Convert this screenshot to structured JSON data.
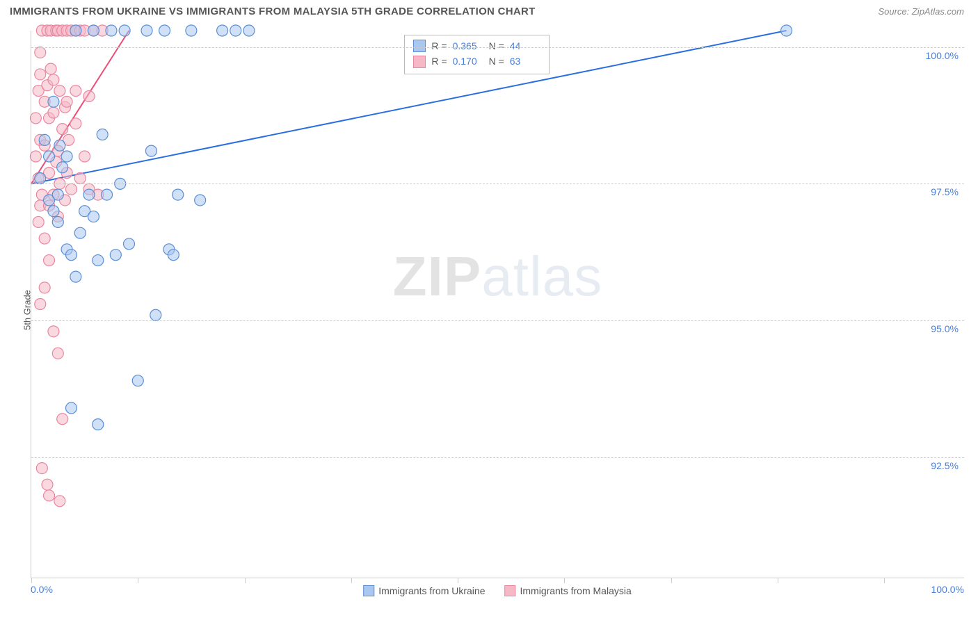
{
  "title": "IMMIGRANTS FROM UKRAINE VS IMMIGRANTS FROM MALAYSIA 5TH GRADE CORRELATION CHART",
  "source_label": "Source: ",
  "source_name": "ZipAtlas.com",
  "y_axis_label": "5th Grade",
  "watermark_bold": "ZIP",
  "watermark_light": "atlas",
  "x_min_label": "0.0%",
  "x_max_label": "100.0%",
  "series": [
    {
      "name": "Immigrants from Ukraine",
      "fill": "#a9c7ef",
      "stroke": "#5a8fd6",
      "line_stroke": "#2a6fe0",
      "R": "0.365",
      "N": "44"
    },
    {
      "name": "Immigrants from Malaysia",
      "fill": "#f6b8c6",
      "stroke": "#e986a0",
      "line_stroke": "#ec4d78",
      "R": "0.170",
      "N": "63"
    }
  ],
  "chart": {
    "type": "scatter",
    "xlim": [
      0,
      105
    ],
    "ylim": [
      90.3,
      100.3
    ],
    "y_ticks": [
      92.5,
      95.0,
      97.5,
      100.0
    ],
    "y_tick_labels": [
      "92.5%",
      "95.0%",
      "97.5%",
      "100.0%"
    ],
    "x_tick_positions": [
      0,
      12,
      24,
      36,
      48,
      60,
      72,
      84,
      96
    ],
    "marker_radius": 8,
    "marker_opacity": 0.55,
    "grid_color": "#cccccc",
    "background_color": "#ffffff",
    "title_color": "#555555",
    "axis_label_color": "#4a7fd8",
    "trend_lines": [
      {
        "series": 0,
        "x1": 0,
        "y1": 97.5,
        "x2": 85,
        "y2": 100.3
      },
      {
        "series": 1,
        "x1": 0,
        "y1": 97.5,
        "x2": 11,
        "y2": 100.3
      }
    ],
    "points_ukraine": [
      [
        1,
        97.6
      ],
      [
        1.5,
        98.3
      ],
      [
        2,
        97.2
      ],
      [
        2,
        98.0
      ],
      [
        2.5,
        97.0
      ],
      [
        2.5,
        99.0
      ],
      [
        3,
        96.8
      ],
      [
        3,
        97.3
      ],
      [
        3.2,
        98.2
      ],
      [
        3.5,
        97.8
      ],
      [
        4,
        96.3
      ],
      [
        4,
        98.0
      ],
      [
        4.5,
        96.2
      ],
      [
        5,
        100.3
      ],
      [
        5,
        95.8
      ],
      [
        5.5,
        96.6
      ],
      [
        6,
        97.0
      ],
      [
        6.5,
        97.3
      ],
      [
        7,
        100.3
      ],
      [
        7,
        96.9
      ],
      [
        7.5,
        96.1
      ],
      [
        8,
        98.4
      ],
      [
        8.5,
        97.3
      ],
      [
        9,
        100.3
      ],
      [
        9.5,
        96.2
      ],
      [
        10,
        97.5
      ],
      [
        10.5,
        100.3
      ],
      [
        11,
        96.4
      ],
      [
        12,
        93.9
      ],
      [
        13,
        100.3
      ],
      [
        13.5,
        98.1
      ],
      [
        14,
        95.1
      ],
      [
        15,
        100.3
      ],
      [
        15.5,
        96.3
      ],
      [
        16,
        96.2
      ],
      [
        16.5,
        97.3
      ],
      [
        18,
        100.3
      ],
      [
        19,
        97.2
      ],
      [
        21.5,
        100.3
      ],
      [
        23,
        100.3
      ],
      [
        24.5,
        100.3
      ],
      [
        4.5,
        93.4
      ],
      [
        7.5,
        93.1
      ],
      [
        85,
        100.3
      ]
    ],
    "points_malaysia": [
      [
        0.5,
        98.0
      ],
      [
        0.5,
        98.7
      ],
      [
        0.8,
        99.2
      ],
      [
        0.8,
        97.6
      ],
      [
        1,
        99.5
      ],
      [
        1,
        98.3
      ],
      [
        1,
        97.1
      ],
      [
        1,
        99.9
      ],
      [
        1.2,
        100.3
      ],
      [
        1.2,
        97.3
      ],
      [
        1.5,
        99.0
      ],
      [
        1.5,
        98.2
      ],
      [
        1.5,
        96.5
      ],
      [
        1.8,
        100.3
      ],
      [
        1.8,
        99.3
      ],
      [
        2,
        98.7
      ],
      [
        2,
        97.7
      ],
      [
        2,
        97.1
      ],
      [
        2.2,
        99.6
      ],
      [
        2.2,
        100.3
      ],
      [
        2.5,
        98.8
      ],
      [
        2.5,
        99.4
      ],
      [
        2.5,
        97.3
      ],
      [
        2.8,
        100.3
      ],
      [
        2.8,
        97.9
      ],
      [
        3,
        100.3
      ],
      [
        3,
        98.1
      ],
      [
        3,
        96.9
      ],
      [
        3.2,
        99.2
      ],
      [
        3.2,
        97.5
      ],
      [
        3.5,
        98.5
      ],
      [
        3.5,
        100.3
      ],
      [
        3.8,
        98.9
      ],
      [
        3.8,
        97.2
      ],
      [
        4,
        100.3
      ],
      [
        4,
        99.0
      ],
      [
        4,
        97.7
      ],
      [
        4.2,
        98.3
      ],
      [
        4.5,
        100.3
      ],
      [
        4.5,
        97.4
      ],
      [
        5,
        100.3
      ],
      [
        5,
        98.6
      ],
      [
        5,
        99.2
      ],
      [
        5.5,
        100.3
      ],
      [
        5.5,
        97.6
      ],
      [
        6,
        100.3
      ],
      [
        6,
        98.0
      ],
      [
        6.5,
        99.1
      ],
      [
        6.5,
        97.4
      ],
      [
        7,
        100.3
      ],
      [
        7.5,
        97.3
      ],
      [
        8,
        100.3
      ],
      [
        1,
        95.3
      ],
      [
        1.5,
        95.6
      ],
      [
        2,
        96.1
      ],
      [
        2.5,
        94.8
      ],
      [
        3,
        94.4
      ],
      [
        3.5,
        93.2
      ],
      [
        1.2,
        92.3
      ],
      [
        2,
        91.8
      ],
      [
        3.2,
        91.7
      ],
      [
        1.8,
        92.0
      ],
      [
        0.8,
        96.8
      ]
    ]
  }
}
